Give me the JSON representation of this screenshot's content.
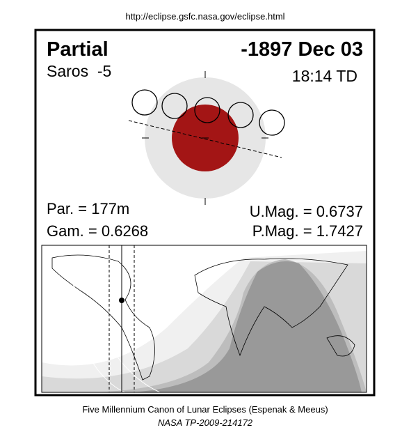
{
  "header": {
    "url": "http://eclipse.gsfc.nasa.gov/eclipse.html"
  },
  "eclipse": {
    "type": "Partial",
    "date": "-1897 Dec 03",
    "saros": "Saros  -5",
    "time": "18:14 TD",
    "duration": "Par. = 177m",
    "gamma": "Gam. = 0.6268",
    "umbral_magnitude": "U.Mag. = 0.6737",
    "penumbral_magnitude": "P.Mag. = 1.7427"
  },
  "footer": {
    "line1": "Five Millennium Canon of Lunar Eclipses (Espenak & Meeus)",
    "line2": "NASA TP-2009-214172"
  }
}
